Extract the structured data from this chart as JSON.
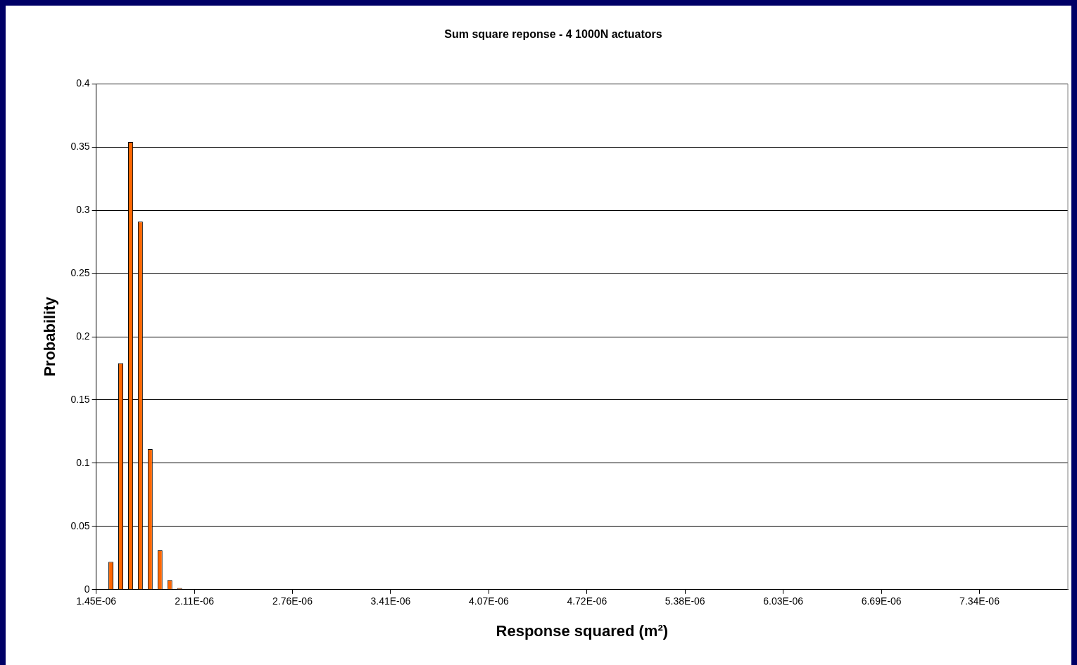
{
  "chart_data": {
    "type": "histogram",
    "title": "Sum square reponse - 4 1000N actuators",
    "xlabel": "Response squared (m²)",
    "ylabel": "Probability",
    "bins": [
      1.45e-06,
      1.5155e-06,
      1.581e-06,
      1.6465e-06,
      1.712e-06,
      1.7775e-06,
      1.843e-06,
      1.9085e-06,
      1.974e-06,
      2.0395e-06,
      2.105e-06,
      2.1705e-06,
      2.236e-06,
      2.3015e-06,
      2.367e-06,
      2.4325e-06,
      2.498e-06,
      2.5635e-06,
      2.629e-06,
      2.6945e-06,
      2.76e-06,
      2.8255e-06,
      2.891e-06,
      2.9565e-06,
      3.022e-06,
      3.0875e-06,
      3.153e-06,
      3.2185e-06,
      3.284e-06,
      3.3495e-06,
      3.415e-06,
      3.4805e-06,
      3.546e-06,
      3.6115e-06,
      3.677e-06,
      3.7425e-06,
      3.808e-06,
      3.8735e-06,
      3.939e-06,
      4.0045e-06,
      4.07e-06,
      4.1355e-06,
      4.201e-06,
      4.2665e-06,
      4.332e-06,
      4.3975e-06,
      4.463e-06,
      4.5285e-06,
      4.594e-06,
      4.6595e-06,
      4.725e-06,
      4.7905e-06,
      4.856e-06,
      4.9215e-06,
      4.987e-06,
      5.0525e-06,
      5.118e-06,
      5.1835e-06,
      5.249e-06,
      5.3145e-06,
      5.38e-06,
      5.4455e-06,
      5.511e-06,
      5.5765e-06,
      5.642e-06,
      5.7075e-06,
      5.773e-06,
      5.8385e-06,
      5.904e-06,
      5.9695e-06,
      6.035e-06,
      6.1005e-06,
      6.166e-06,
      6.2315e-06,
      6.297e-06,
      6.3625e-06,
      6.428e-06,
      6.4935e-06,
      6.559e-06,
      6.6245e-06,
      6.69e-06,
      6.7555e-06,
      6.821e-06,
      6.8865e-06,
      6.952e-06,
      7.0175e-06,
      7.083e-06,
      7.1485e-06,
      7.214e-06,
      7.2795e-06,
      7.345e-06,
      7.4105e-06,
      7.476e-06,
      7.5415e-06,
      7.607e-06,
      7.6725e-06,
      7.738e-06,
      7.8035e-06,
      7.869e-06,
      7.9345e-06
    ],
    "values": [
      0,
      0.022,
      0.179,
      0.354,
      0.291,
      0.111,
      0.031,
      0.0075,
      0.0013,
      0.0003,
      0,
      0,
      0,
      0,
      0,
      0,
      0,
      0,
      0,
      0,
      0,
      0,
      0,
      0,
      0,
      0,
      0,
      0,
      0,
      0,
      0,
      0,
      0,
      0,
      0,
      0,
      0,
      0,
      0,
      0,
      0,
      0,
      0,
      0,
      0,
      0,
      0,
      0,
      0,
      0,
      0,
      0,
      0,
      0,
      0,
      0,
      0,
      0,
      0,
      0,
      0,
      0,
      0,
      0,
      0,
      0,
      0,
      0,
      0,
      0,
      0,
      0,
      0,
      0,
      0,
      0,
      0,
      0,
      0,
      0,
      0,
      0,
      0,
      0,
      0.0003,
      0,
      0,
      0,
      0.0003,
      0,
      0.0003,
      0,
      0.0003,
      0,
      0,
      0.0003,
      0,
      0,
      0.0003
    ],
    "color": "#ff6600",
    "xlim": [
      1.45e-06,
      7.9345e-06
    ],
    "xticks": [
      {
        "value": 1.45e-06,
        "label": "1.45E-06"
      },
      {
        "value": 2.105e-06,
        "label": "2.11E-06"
      },
      {
        "value": 2.76e-06,
        "label": "2.76E-06"
      },
      {
        "value": 3.415e-06,
        "label": "3.41E-06"
      },
      {
        "value": 4.07e-06,
        "label": "4.07E-06"
      },
      {
        "value": 4.725e-06,
        "label": "4.72E-06"
      },
      {
        "value": 5.38e-06,
        "label": "5.38E-06"
      },
      {
        "value": 6.035e-06,
        "label": "6.03E-06"
      },
      {
        "value": 6.69e-06,
        "label": "6.69E-06"
      },
      {
        "value": 7.345e-06,
        "label": "7.34E-06"
      }
    ],
    "ylim": [
      0,
      0.4
    ],
    "yticks": [
      0,
      0.05,
      0.1,
      0.15,
      0.2,
      0.25,
      0.3,
      0.35,
      0.4
    ],
    "grid": "y",
    "legend": false
  }
}
